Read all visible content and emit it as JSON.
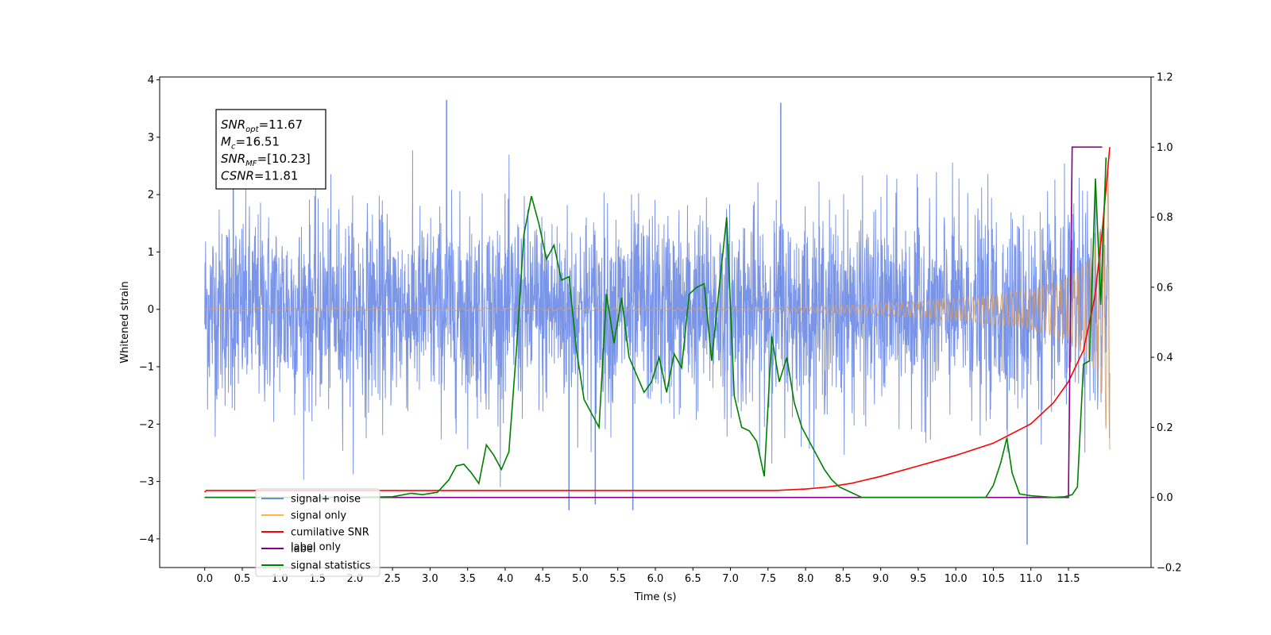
{
  "chart_data": {
    "type": "line",
    "xlabel": "Time (s)",
    "ylabel": "Whitened strain",
    "xlim": [
      -0.6,
      12.6
    ],
    "ylim": [
      -4.5,
      4.05
    ],
    "y2lim": [
      -0.2,
      1.2
    ],
    "xticks": [
      "0.0",
      "0.5",
      "1.0",
      "1.5",
      "2.0",
      "2.5",
      "3.0",
      "3.5",
      "4.0",
      "4.5",
      "5.0",
      "5.5",
      "6.0",
      "6.5",
      "7.0",
      "7.5",
      "8.0",
      "8.5",
      "9.0",
      "9.5",
      "10.0",
      "10.5",
      "11.0",
      "11.5"
    ],
    "yticks": [
      "4",
      "3",
      "2",
      "1",
      "0",
      "−1",
      "−2",
      "−3",
      "−4"
    ],
    "y2ticks": [
      "1.2",
      "1.0",
      "0.8",
      "0.6",
      "0.4",
      "0.2",
      "0.0",
      "−0.2"
    ],
    "annotation": [
      {
        "main": "SNR",
        "sub": "opt",
        "rest": "=11.67"
      },
      {
        "main": "M",
        "sub": "c",
        "rest": "=16.51"
      },
      {
        "main": "SNR",
        "sub": "MF",
        "rest": "=[10.23]"
      },
      {
        "main": "CSNR",
        "sub": "",
        "rest": "=11.81"
      }
    ],
    "legend": {
      "placement": "lower-left",
      "entries": [
        {
          "label": "signal+ noise",
          "color": "#6b8ae4"
        },
        {
          "label": "signal only",
          "color": "#ffb347"
        },
        {
          "label": "cumilative SNR",
          "color": "#ff0000"
        },
        {
          "label": "label",
          "color": "#800080"
        },
        {
          "label": "signal statistics",
          "color": "#008000"
        }
      ],
      "hidden_text": [
        "label only"
      ]
    },
    "series": [
      {
        "name": "signal+ noise",
        "axis": "left",
        "color": "#6b8ae4",
        "description": "white noise std ~0.85 plus chirp, t 0 to 12.05",
        "x_range": [
          0,
          12.05
        ],
        "noise_std": 0.85,
        "peaks": [
          [
            3.22,
            3.65
          ],
          [
            0.38,
            2.25
          ],
          [
            7.67,
            3.6
          ],
          [
            10.95,
            -4.1
          ],
          [
            4.85,
            -3.5
          ],
          [
            5.7,
            -3.5
          ],
          [
            5.2,
            -3.4
          ]
        ]
      },
      {
        "name": "signal only",
        "axis": "left",
        "color": "#d8a06a",
        "envelope": [
          [
            0,
            0.02
          ],
          [
            7.5,
            0.03
          ],
          [
            8.5,
            0.07
          ],
          [
            9.5,
            0.14
          ],
          [
            10.5,
            0.25
          ],
          [
            11.0,
            0.35
          ],
          [
            11.5,
            0.55
          ],
          [
            11.8,
            0.9
          ],
          [
            11.95,
            1.5
          ],
          [
            12.05,
            2.7
          ]
        ],
        "cycles_hz": [
          [
            0,
            1.2
          ],
          [
            12.05,
            18
          ]
        ]
      },
      {
        "name": "cumilative SNR",
        "axis": "right",
        "color": "#ff0000",
        "x": [
          0,
          0.02,
          0.5,
          2,
          4,
          6,
          7,
          7.6,
          8.0,
          8.3,
          8.6,
          9.0,
          9.5,
          10.0,
          10.5,
          11.0,
          11.3,
          11.5,
          11.7,
          11.85,
          11.95,
          12.05
        ],
        "y": [
          0.015,
          0.02,
          0.02,
          0.02,
          0.02,
          0.02,
          0.02,
          0.02,
          0.024,
          0.03,
          0.04,
          0.06,
          0.09,
          0.12,
          0.155,
          0.21,
          0.27,
          0.33,
          0.42,
          0.57,
          0.76,
          1.0
        ]
      },
      {
        "name": "label",
        "axis": "right",
        "color": "#800080",
        "x": [
          0,
          11.5,
          11.55,
          11.95
        ],
        "y": [
          0,
          0,
          1.0,
          1.0
        ]
      },
      {
        "name": "signal statistics",
        "axis": "right",
        "color": "#008000",
        "x": [
          0,
          1.0,
          2.0,
          2.5,
          2.75,
          2.9,
          3.1,
          3.25,
          3.35,
          3.45,
          3.55,
          3.65,
          3.75,
          3.85,
          3.95,
          4.05,
          4.15,
          4.25,
          4.35,
          4.45,
          4.55,
          4.65,
          4.75,
          4.85,
          4.95,
          5.05,
          5.15,
          5.25,
          5.35,
          5.45,
          5.55,
          5.65,
          5.75,
          5.85,
          5.95,
          6.05,
          6.15,
          6.25,
          6.35,
          6.45,
          6.55,
          6.65,
          6.75,
          6.85,
          6.95,
          7.05,
          7.15,
          7.25,
          7.35,
          7.45,
          7.55,
          7.65,
          7.75,
          7.85,
          7.95,
          8.05,
          8.15,
          8.25,
          8.35,
          8.45,
          8.55,
          8.75,
          9.0,
          10.0,
          10.4,
          10.5,
          10.6,
          10.68,
          10.75,
          10.85,
          11.0,
          11.3,
          11.45,
          11.55,
          11.62,
          11.7,
          11.78,
          11.86,
          11.93,
          12.0
        ],
        "y": [
          0,
          0,
          0,
          0.002,
          0.012,
          0.008,
          0.015,
          0.05,
          0.09,
          0.095,
          0.07,
          0.04,
          0.15,
          0.12,
          0.08,
          0.13,
          0.42,
          0.75,
          0.86,
          0.78,
          0.68,
          0.72,
          0.62,
          0.63,
          0.42,
          0.28,
          0.24,
          0.2,
          0.58,
          0.44,
          0.57,
          0.4,
          0.35,
          0.3,
          0.33,
          0.4,
          0.3,
          0.41,
          0.37,
          0.58,
          0.6,
          0.61,
          0.39,
          0.6,
          0.8,
          0.29,
          0.2,
          0.19,
          0.16,
          0.06,
          0.46,
          0.33,
          0.4,
          0.27,
          0.2,
          0.16,
          0.12,
          0.08,
          0.05,
          0.03,
          0.02,
          0,
          0,
          0,
          0,
          0.035,
          0.1,
          0.17,
          0.07,
          0.01,
          0.005,
          0,
          0.002,
          0.008,
          0.03,
          0.38,
          0.39,
          0.91,
          0.55,
          0.97
        ]
      }
    ]
  }
}
